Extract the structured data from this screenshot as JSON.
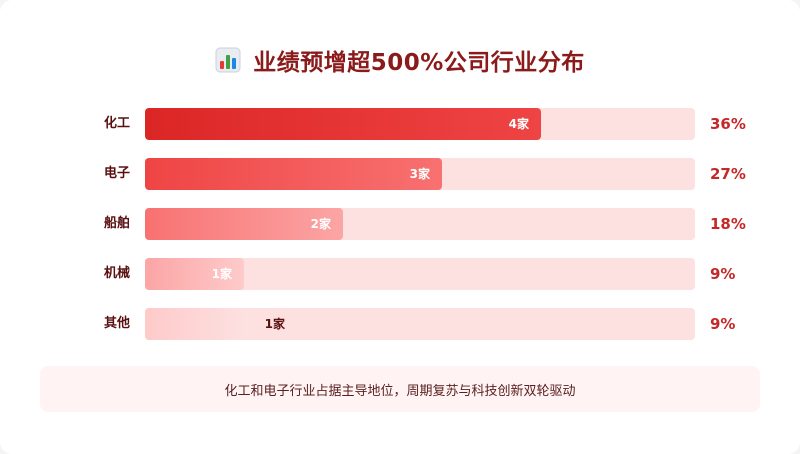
{
  "title": "业绩预增超500%公司行业分布",
  "icon": "bar-chart-icon",
  "note": "化工和电子行业占据主导地位，周期复苏与科技创新双轮驱动",
  "chart_data": {
    "type": "bar",
    "orientation": "horizontal",
    "title": "业绩预增超500%公司行业分布",
    "categories": [
      "化工",
      "电子",
      "船舶",
      "机械",
      "其他"
    ],
    "values": [
      4,
      3,
      2,
      1,
      1
    ],
    "value_labels": [
      "4家",
      "3家",
      "2家",
      "1家",
      "1家"
    ],
    "percent_labels": [
      "36%",
      "27%",
      "18%",
      "9%",
      "9%"
    ],
    "xlim": [
      0,
      5.56
    ],
    "grid": false,
    "colors": {
      "bars": [
        [
          "#dc2626",
          "#ef4444"
        ],
        [
          "#ef4444",
          "#f87171"
        ],
        [
          "#f87171",
          "#fca5a5"
        ],
        [
          "#fca5a5",
          "#fecaca"
        ],
        [
          "#fecaca",
          "#fde0e0"
        ]
      ],
      "track": "#fde0e0",
      "percent": "#c62828",
      "label_on_dark": "#ffffff",
      "label_on_light": "#5a1010"
    }
  }
}
